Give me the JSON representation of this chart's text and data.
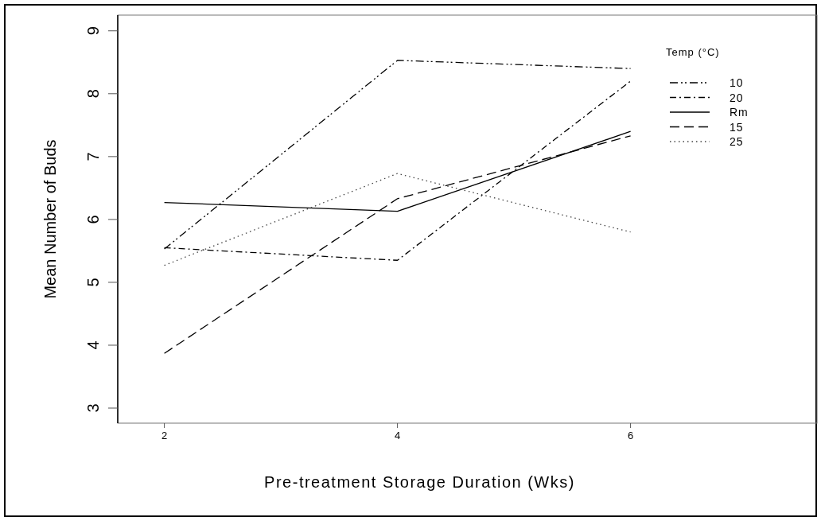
{
  "chart_data": {
    "type": "line",
    "xlabel": "Pre-treatment Storage Duration (Wks)",
    "ylabel": "Mean Number of Buds",
    "legend_title": "Temp (°C)",
    "legend": "top right",
    "grid": false,
    "marker": "none",
    "x": [
      2,
      4,
      6
    ],
    "xlim": [
      1.6,
      7.6
    ],
    "xticks": [
      2,
      4,
      6
    ],
    "ylim": [
      2.76,
      9.25
    ],
    "yticks": [
      3,
      4,
      5,
      6,
      7,
      8,
      9
    ],
    "series": [
      {
        "name": "10",
        "color": "#000000",
        "line_style": "dashdotdot",
        "values": [
          5.53,
          8.53,
          8.4
        ]
      },
      {
        "name": "20",
        "color": "#000000",
        "line_style": "dashdot",
        "values": [
          5.55,
          5.35,
          8.2
        ]
      },
      {
        "name": "Rm",
        "color": "#000000",
        "line_style": "solid",
        "values": [
          6.27,
          6.13,
          7.4
        ]
      },
      {
        "name": "15",
        "color": "#000000",
        "line_style": "dashed",
        "values": [
          3.87,
          6.33,
          7.33
        ]
      },
      {
        "name": "25",
        "color": "#444444",
        "line_style": "dotted",
        "values": [
          5.27,
          6.73,
          5.8
        ]
      }
    ]
  }
}
